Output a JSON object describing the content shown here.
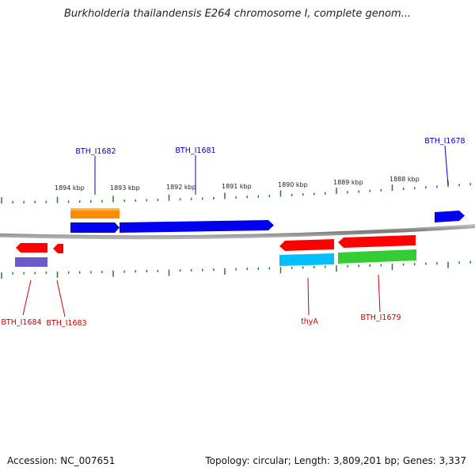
{
  "title": "Burkholderia thailandensis E264 chromosome I, complete genom...",
  "accession_text": "Accession: NC_007651",
  "summary_text": "Topology: circular; Length: 3,809,201 bp; Genes: 3,337",
  "scale_labels": [
    "1894 kbp",
    "1893 kbp",
    "1892 kbp",
    "1891 kbp",
    "1890 kbp",
    "1889 kbp",
    "1888 kbp"
  ],
  "forward_gene_labels": [
    "BTH_I1682",
    "BTH_I1681",
    "BTH_I1678"
  ],
  "reverse_gene_labels": [
    "BTH_I1684",
    "BTH_I1683",
    "thyA",
    "BTH_I1679"
  ],
  "colors": {
    "forward_label": "#0000cc",
    "reverse_label": "#cc0000",
    "tick": "#2a7a2a",
    "backbone": "#888888",
    "blue": "#0000ee",
    "orange": "#ff8c00",
    "red": "#ff0000",
    "purple": "#6a5acd",
    "cyan": "#00bfff",
    "green": "#33cc33"
  }
}
